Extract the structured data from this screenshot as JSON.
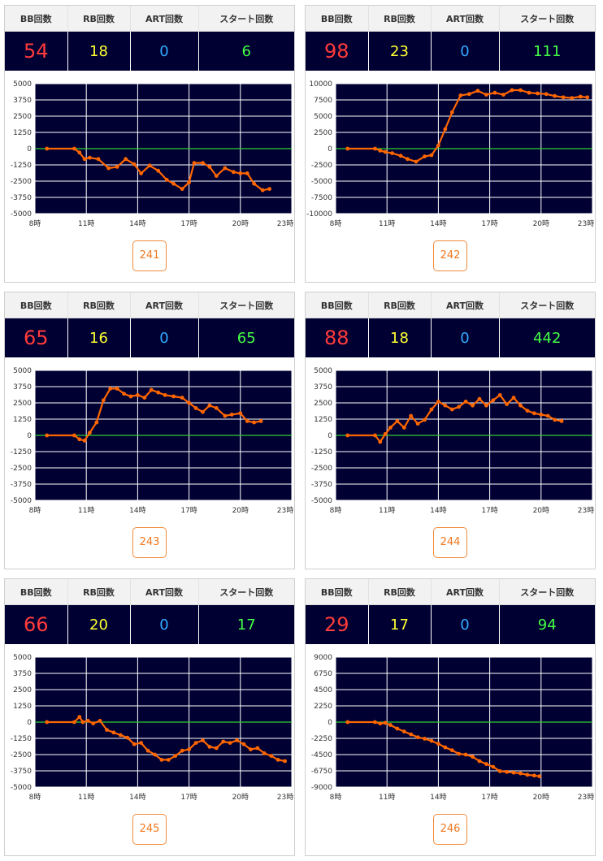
{
  "headers": {
    "bb": "BB回数",
    "rb": "RB回数",
    "art": "ART回数",
    "start": "スタート回数"
  },
  "colors": {
    "plot_bg": "#000033",
    "grid": "#ffffff",
    "zero_line": "#33cc33",
    "series": "#ff6600",
    "bb": "#ff3b3b",
    "rb": "#ffff33",
    "art": "#33aaff",
    "start": "#44ff44"
  },
  "x_ticks": [
    "8時",
    "11時",
    "14時",
    "17時",
    "20時",
    "23時"
  ],
  "machines": [
    {
      "stats": {
        "bb": "54",
        "rb": "18",
        "art": "0",
        "start": "6"
      },
      "number": "241",
      "chart_data": {
        "type": "line",
        "x_range": [
          8,
          23
        ],
        "y_range": [
          -5000,
          5000
        ],
        "y_ticks": [
          "5000",
          "3750",
          "2500",
          "1250",
          "0",
          "-1250",
          "-2500",
          "-3750",
          "-5000"
        ],
        "grid": true,
        "x": [
          8.7,
          10.3,
          10.6,
          10.9,
          11.2,
          11.7,
          12.3,
          12.8,
          13.3,
          13.8,
          14.2,
          14.7,
          15.2,
          15.7,
          16.1,
          16.6,
          17.0,
          17.3,
          17.8,
          18.2,
          18.6,
          19.1,
          19.6,
          20.0,
          20.4,
          20.8,
          21.3,
          21.7
        ],
        "y": [
          0,
          0,
          -300,
          -800,
          -700,
          -800,
          -1500,
          -1400,
          -800,
          -1200,
          -1900,
          -1300,
          -1700,
          -2400,
          -2700,
          -3100,
          -2600,
          -1100,
          -1100,
          -1400,
          -2100,
          -1500,
          -1800,
          -1900,
          -1900,
          -2700,
          -3200,
          -3100
        ]
      }
    },
    {
      "stats": {
        "bb": "98",
        "rb": "23",
        "art": "0",
        "start": "111"
      },
      "number": "242",
      "chart_data": {
        "type": "line",
        "x_range": [
          8,
          23
        ],
        "y_range": [
          -10000,
          10000
        ],
        "y_ticks": [
          "10000",
          "7500",
          "5000",
          "2500",
          "0",
          "-2500",
          "-5000",
          "-7500",
          "-10000"
        ],
        "grid": true,
        "x": [
          8.7,
          10.3,
          10.6,
          10.9,
          11.3,
          11.8,
          12.2,
          12.7,
          13.2,
          13.6,
          14.0,
          14.4,
          14.8,
          15.3,
          15.8,
          16.3,
          16.8,
          17.3,
          17.8,
          18.3,
          18.8,
          19.3,
          19.8,
          20.3,
          20.8,
          21.3,
          21.8,
          22.3,
          22.7
        ],
        "y": [
          0,
          0,
          -300,
          -500,
          -700,
          -1100,
          -1600,
          -2000,
          -1200,
          -1000,
          500,
          3000,
          5600,
          8200,
          8400,
          8900,
          8300,
          8600,
          8300,
          9000,
          9000,
          8600,
          8500,
          8400,
          8100,
          7900,
          7800,
          8000,
          7900
        ]
      }
    },
    {
      "stats": {
        "bb": "65",
        "rb": "16",
        "art": "0",
        "start": "65"
      },
      "number": "243",
      "chart_data": {
        "type": "line",
        "x_range": [
          8,
          23
        ],
        "y_range": [
          -5000,
          5000
        ],
        "y_ticks": [
          "5000",
          "3750",
          "2500",
          "1250",
          "0",
          "-1250",
          "-2500",
          "-3750",
          "-5000"
        ],
        "grid": true,
        "x": [
          8.7,
          10.3,
          10.6,
          10.9,
          11.2,
          11.6,
          12.0,
          12.4,
          12.8,
          13.2,
          13.6,
          14.0,
          14.4,
          14.8,
          15.2,
          15.6,
          16.1,
          16.6,
          17.0,
          17.4,
          17.8,
          18.2,
          18.6,
          19.1,
          19.5,
          20.0,
          20.4,
          20.8,
          21.2
        ],
        "y": [
          0,
          0,
          -300,
          -400,
          200,
          1000,
          2700,
          3600,
          3600,
          3200,
          3000,
          3100,
          2900,
          3500,
          3300,
          3100,
          3000,
          2900,
          2500,
          2100,
          1800,
          2300,
          2100,
          1500,
          1600,
          1700,
          1100,
          1000,
          1100
        ]
      }
    },
    {
      "stats": {
        "bb": "88",
        "rb": "18",
        "art": "0",
        "start": "442"
      },
      "number": "244",
      "chart_data": {
        "type": "line",
        "x_range": [
          8,
          23
        ],
        "y_range": [
          -5000,
          5000
        ],
        "y_ticks": [
          "5000",
          "3750",
          "2500",
          "1250",
          "0",
          "-1250",
          "-2500",
          "-3750",
          "-5000"
        ],
        "grid": true,
        "x": [
          8.7,
          10.3,
          10.6,
          10.9,
          11.2,
          11.6,
          12.0,
          12.4,
          12.8,
          13.2,
          13.6,
          14.0,
          14.4,
          14.8,
          15.2,
          15.6,
          16.0,
          16.4,
          16.8,
          17.2,
          17.6,
          18.0,
          18.4,
          18.8,
          19.2,
          19.6,
          20.0,
          20.4,
          20.8,
          21.2
        ],
        "y": [
          0,
          0,
          -500,
          100,
          600,
          1100,
          600,
          1500,
          900,
          1200,
          2000,
          2600,
          2300,
          2000,
          2200,
          2600,
          2300,
          2800,
          2300,
          2700,
          3100,
          2400,
          2900,
          2300,
          1900,
          1700,
          1600,
          1500,
          1200,
          1100
        ]
      }
    },
    {
      "stats": {
        "bb": "66",
        "rb": "20",
        "art": "0",
        "start": "17"
      },
      "number": "245",
      "chart_data": {
        "type": "line",
        "x_range": [
          8,
          23
        ],
        "y_range": [
          -5000,
          5000
        ],
        "y_ticks": [
          "5000",
          "3750",
          "2500",
          "1250",
          "0",
          "-1250",
          "-2500",
          "-3750",
          "-5000"
        ],
        "grid": true,
        "x": [
          8.7,
          10.3,
          10.6,
          10.8,
          11.1,
          11.4,
          11.8,
          12.2,
          12.6,
          13.0,
          13.4,
          13.8,
          14.2,
          14.6,
          15.0,
          15.4,
          15.8,
          16.2,
          16.6,
          17.0,
          17.4,
          17.8,
          18.2,
          18.6,
          19.0,
          19.4,
          19.8,
          20.2,
          20.6,
          21.0,
          21.4,
          21.8,
          22.2,
          22.6
        ],
        "y": [
          0,
          0,
          400,
          0,
          100,
          -100,
          100,
          -600,
          -800,
          -1000,
          -1200,
          -1700,
          -1600,
          -2200,
          -2500,
          -2900,
          -2900,
          -2600,
          -2200,
          -2100,
          -1600,
          -1400,
          -1900,
          -2000,
          -1500,
          -1600,
          -1400,
          -1700,
          -2100,
          -2000,
          -2400,
          -2600,
          -2900,
          -3000
        ]
      }
    },
    {
      "stats": {
        "bb": "29",
        "rb": "17",
        "art": "0",
        "start": "94"
      },
      "number": "246",
      "chart_data": {
        "type": "line",
        "x_range": [
          8,
          23
        ],
        "y_range": [
          -9000,
          9000
        ],
        "y_ticks": [
          "9000",
          "6750",
          "4500",
          "2250",
          "0",
          "-2250",
          "-4500",
          "-6750",
          "-9000"
        ],
        "grid": true,
        "x": [
          8.7,
          10.3,
          10.6,
          10.9,
          11.2,
          11.6,
          12.0,
          12.4,
          12.8,
          13.2,
          13.6,
          14.0,
          14.4,
          14.8,
          15.2,
          15.6,
          16.0,
          16.4,
          16.8,
          17.2,
          17.6,
          18.0,
          18.4,
          18.8,
          19.2,
          19.6,
          19.9
        ],
        "y": [
          0,
          0,
          -200,
          -100,
          -400,
          -900,
          -1300,
          -1700,
          -2100,
          -2300,
          -2600,
          -3000,
          -3500,
          -3900,
          -4400,
          -4500,
          -4800,
          -5400,
          -5800,
          -6200,
          -6800,
          -6900,
          -7000,
          -7100,
          -7300,
          -7400,
          -7500
        ]
      }
    }
  ]
}
